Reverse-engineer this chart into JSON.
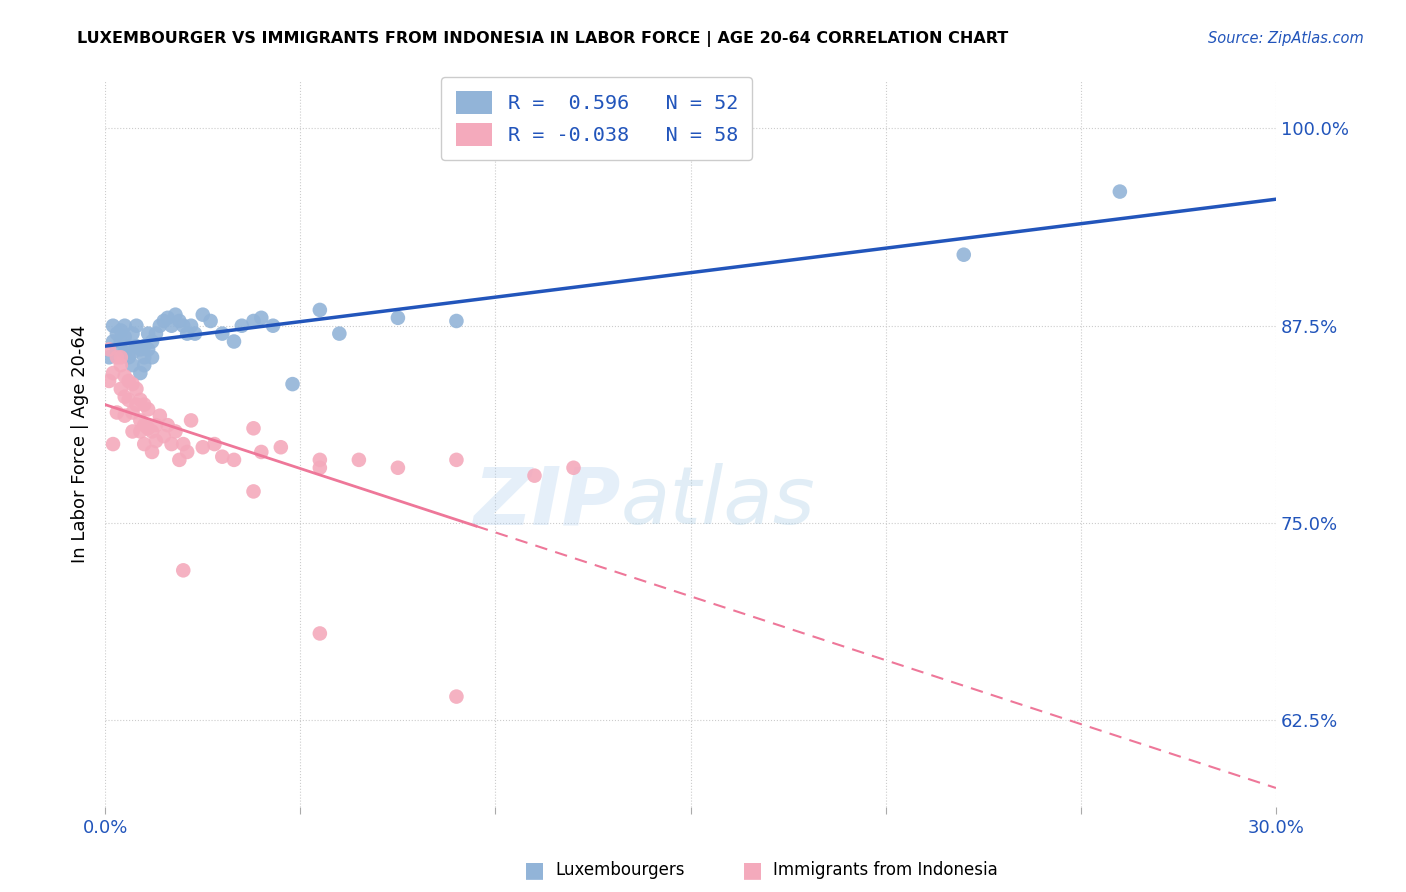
{
  "title": "LUXEMBOURGER VS IMMIGRANTS FROM INDONESIA IN LABOR FORCE | AGE 20-64 CORRELATION CHART",
  "source": "Source: ZipAtlas.com",
  "ylabel": "In Labor Force | Age 20-64",
  "xlim": [
    0.0,
    0.3
  ],
  "ylim": [
    0.57,
    1.03
  ],
  "yticks": [
    0.625,
    0.75,
    0.875,
    1.0
  ],
  "ytick_labels": [
    "62.5%",
    "75.0%",
    "87.5%",
    "100.0%"
  ],
  "xticks": [
    0.0,
    0.05,
    0.1,
    0.15,
    0.2,
    0.25,
    0.3
  ],
  "blue_R": "0.596",
  "blue_N": "52",
  "pink_R": "-0.038",
  "pink_N": "58",
  "blue_color": "#92B4D8",
  "pink_color": "#F4AABC",
  "blue_line_color": "#2255BB",
  "pink_line_color": "#EE7799",
  "blue_scatter_x": [
    0.001,
    0.002,
    0.002,
    0.003,
    0.003,
    0.004,
    0.004,
    0.005,
    0.005,
    0.005,
    0.006,
    0.006,
    0.007,
    0.007,
    0.007,
    0.008,
    0.008,
    0.009,
    0.009,
    0.01,
    0.01,
    0.01,
    0.011,
    0.011,
    0.012,
    0.012,
    0.013,
    0.014,
    0.015,
    0.016,
    0.017,
    0.018,
    0.019,
    0.02,
    0.021,
    0.022,
    0.023,
    0.025,
    0.027,
    0.03,
    0.033,
    0.035,
    0.038,
    0.04,
    0.043,
    0.048,
    0.055,
    0.06,
    0.075,
    0.09,
    0.22,
    0.26
  ],
  "blue_scatter_y": [
    0.855,
    0.865,
    0.875,
    0.87,
    0.86,
    0.872,
    0.865,
    0.868,
    0.858,
    0.875,
    0.862,
    0.855,
    0.858,
    0.87,
    0.85,
    0.862,
    0.875,
    0.86,
    0.845,
    0.862,
    0.855,
    0.85,
    0.86,
    0.87,
    0.855,
    0.865,
    0.87,
    0.875,
    0.878,
    0.88,
    0.875,
    0.882,
    0.878,
    0.875,
    0.87,
    0.875,
    0.87,
    0.882,
    0.878,
    0.87,
    0.865,
    0.875,
    0.878,
    0.88,
    0.875,
    0.838,
    0.885,
    0.87,
    0.88,
    0.878,
    0.92,
    0.96
  ],
  "pink_scatter_x": [
    0.001,
    0.001,
    0.002,
    0.002,
    0.003,
    0.003,
    0.004,
    0.004,
    0.004,
    0.005,
    0.005,
    0.005,
    0.006,
    0.006,
    0.007,
    0.007,
    0.007,
    0.008,
    0.008,
    0.009,
    0.009,
    0.009,
    0.01,
    0.01,
    0.01,
    0.011,
    0.011,
    0.012,
    0.012,
    0.013,
    0.013,
    0.014,
    0.015,
    0.016,
    0.017,
    0.018,
    0.019,
    0.02,
    0.021,
    0.022,
    0.025,
    0.028,
    0.03,
    0.033,
    0.038,
    0.04,
    0.045,
    0.055,
    0.065,
    0.075,
    0.09,
    0.11,
    0.02,
    0.038,
    0.055,
    0.12,
    0.09,
    0.055
  ],
  "pink_scatter_y": [
    0.84,
    0.86,
    0.845,
    0.8,
    0.855,
    0.82,
    0.855,
    0.835,
    0.85,
    0.843,
    0.83,
    0.818,
    0.84,
    0.828,
    0.838,
    0.82,
    0.808,
    0.835,
    0.825,
    0.828,
    0.815,
    0.808,
    0.825,
    0.812,
    0.8,
    0.822,
    0.81,
    0.808,
    0.795,
    0.812,
    0.802,
    0.818,
    0.805,
    0.812,
    0.8,
    0.808,
    0.79,
    0.8,
    0.795,
    0.815,
    0.798,
    0.8,
    0.792,
    0.79,
    0.81,
    0.795,
    0.798,
    0.785,
    0.79,
    0.785,
    0.79,
    0.78,
    0.72,
    0.77,
    0.79,
    0.785,
    0.64,
    0.68
  ],
  "watermark_part1": "ZIP",
  "watermark_part2": "atlas",
  "legend_blue_label": "Luxembourgers",
  "legend_pink_label": "Immigrants from Indonesia"
}
